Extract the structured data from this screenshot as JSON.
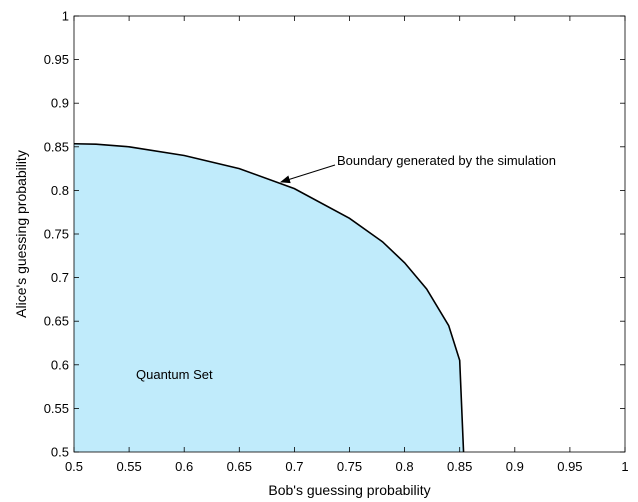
{
  "chart_data": {
    "type": "area",
    "title": "",
    "xlabel": "Bob's guessing probability",
    "ylabel": "Alice's guessing probability",
    "xlim": [
      0.5,
      1
    ],
    "ylim": [
      0.5,
      1
    ],
    "xticks": [
      "0.5",
      "0.55",
      "0.6",
      "0.65",
      "0.7",
      "0.75",
      "0.8",
      "0.85",
      "0.9",
      "0.95",
      "1"
    ],
    "yticks": [
      "0.5",
      "0.55",
      "0.6",
      "0.65",
      "0.7",
      "0.75",
      "0.8",
      "0.85",
      "0.9",
      "0.95",
      "1"
    ],
    "grid": false,
    "series": [
      {
        "name": "",
        "fill_color": "#c0ebfb",
        "line_color": "#000000",
        "x": [
          0.5,
          0.52,
          0.55,
          0.6,
          0.65,
          0.7,
          0.75,
          0.78,
          0.8,
          0.82,
          0.84,
          0.85,
          0.8535
        ],
        "y": [
          0.8535,
          0.853,
          0.85,
          0.84,
          0.825,
          0.802,
          0.768,
          0.741,
          0.717,
          0.687,
          0.645,
          0.605,
          0.5
        ]
      }
    ],
    "annotations": {
      "boundary_label": "Boundary generated by the simulation",
      "region_label": "Quantum Set"
    }
  }
}
